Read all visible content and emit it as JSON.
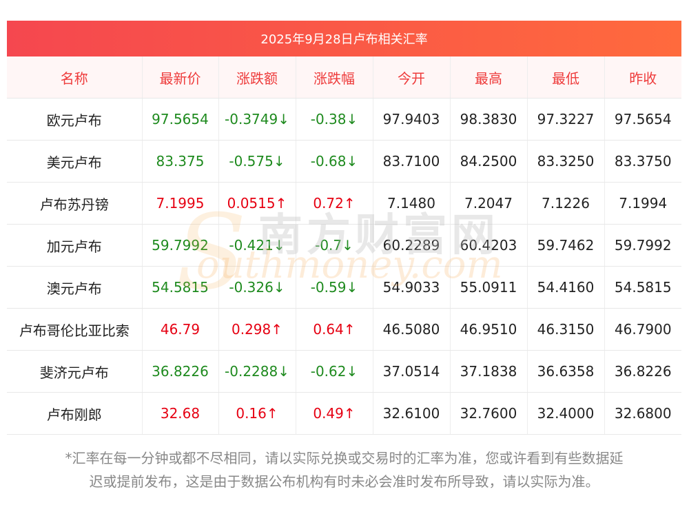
{
  "title": "2025年9月28日卢布相关汇率",
  "headers": [
    "名称",
    "最新价",
    "涨跌额",
    "涨跌幅",
    "今开",
    "最高",
    "最低",
    "昨收"
  ],
  "rows": [
    {
      "name": "欧元卢布",
      "latest": "97.5654",
      "change": "-0.3749↓",
      "pct": "-0.38↓",
      "open": "97.9403",
      "high": "98.3830",
      "low": "97.3227",
      "prev": "97.5654",
      "dir": "down"
    },
    {
      "name": "美元卢布",
      "latest": "83.375",
      "change": "-0.575↓",
      "pct": "-0.68↓",
      "open": "83.7100",
      "high": "84.2500",
      "low": "83.3250",
      "prev": "83.3750",
      "dir": "down"
    },
    {
      "name": "卢布苏丹镑",
      "latest": "7.1995",
      "change": "0.0515↑",
      "pct": "0.72↑",
      "open": "7.1480",
      "high": "7.2047",
      "low": "7.1226",
      "prev": "7.1994",
      "dir": "up"
    },
    {
      "name": "加元卢布",
      "latest": "59.7992",
      "change": "-0.421↓",
      "pct": "-0.7↓",
      "open": "60.2289",
      "high": "60.4203",
      "low": "59.7462",
      "prev": "59.7992",
      "dir": "down"
    },
    {
      "name": "澳元卢布",
      "latest": "54.5815",
      "change": "-0.326↓",
      "pct": "-0.59↓",
      "open": "54.9033",
      "high": "55.0911",
      "low": "54.4160",
      "prev": "54.5815",
      "dir": "down"
    },
    {
      "name": "卢布哥伦比亚比索",
      "latest": "46.79",
      "change": "0.298↑",
      "pct": "0.64↑",
      "open": "46.5080",
      "high": "46.9510",
      "low": "46.3150",
      "prev": "46.7900",
      "dir": "up"
    },
    {
      "name": "斐济元卢布",
      "latest": "36.8226",
      "change": "-0.2288↓",
      "pct": "-0.62↓",
      "open": "37.0514",
      "high": "37.1838",
      "low": "36.6358",
      "prev": "36.8226",
      "dir": "down"
    },
    {
      "name": "卢布刚郎",
      "latest": "32.68",
      "change": "0.16↑",
      "pct": "0.49↑",
      "open": "32.6100",
      "high": "32.7600",
      "low": "32.4000",
      "prev": "32.6800",
      "dir": "up"
    }
  ],
  "note_line1": "*汇率在每一分钟或都不尽相同，请以实际兑换或交易时的汇率为准，您或许看到有些数据延",
  "note_line2": "迟或提前发布，这是由于数据公布机构有时未必会准时发布所导致，请以实际为准。",
  "watermark_cn": "南方财富网",
  "watermark_en": "outhmoney.com",
  "watermark_s": "S",
  "colors": {
    "up": "#e60012",
    "down": "#1e8a1e",
    "header_text": "#ee3b3b",
    "title_from": "#f5474f",
    "title_to": "#ff6a3d"
  }
}
